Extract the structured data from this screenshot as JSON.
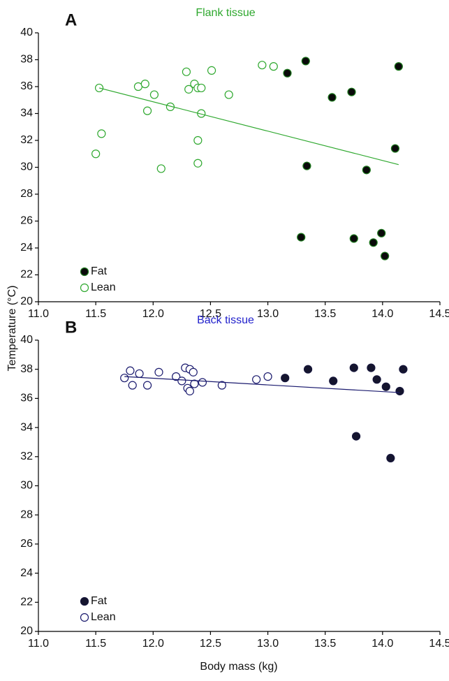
{
  "chart_data": [
    {
      "type": "scatter",
      "panel": "A",
      "title": "Flank tissue",
      "title_color": "#2ea82e",
      "ylabel": "Temperature (°C)",
      "xlim": [
        11,
        14.5
      ],
      "ylim": [
        20,
        40
      ],
      "xticks": [
        {
          "value": 11,
          "label": "11.0"
        },
        11.5,
        {
          "value": 12,
          "label": "12.0"
        },
        12.5,
        {
          "value": 13,
          "label": "13.0"
        },
        13.5,
        {
          "value": 14,
          "label": "14.0"
        },
        14.5
      ],
      "yticks": [
        20,
        22,
        24,
        26,
        28,
        30,
        32,
        34,
        36,
        38,
        40
      ],
      "legend": "lower left",
      "series": [
        {
          "name": "Fat",
          "color": "#1e7a1e",
          "fill": "#0a0a0a",
          "x": [
            13.17,
            13.33,
            13.34,
            13.29,
            13.56,
            13.73,
            13.75,
            13.86,
            13.92,
            13.99,
            14.02,
            14.11,
            14.14
          ],
          "values": [
            37.0,
            37.9,
            30.1,
            24.8,
            35.2,
            35.6,
            24.7,
            29.8,
            24.4,
            25.1,
            23.4,
            31.4,
            37.5
          ]
        },
        {
          "name": "Lean",
          "color": "#2ea82e",
          "fill": "#ffffff",
          "x": [
            11.53,
            11.5,
            11.55,
            11.87,
            11.93,
            12.01,
            11.95,
            12.07,
            12.15,
            12.29,
            12.31,
            12.36,
            12.39,
            12.42,
            12.39,
            12.39,
            12.42,
            12.51,
            12.66,
            12.95,
            13.05
          ],
          "values": [
            35.9,
            31.0,
            32.5,
            36.0,
            36.2,
            35.4,
            34.2,
            29.9,
            34.5,
            37.1,
            35.8,
            36.2,
            35.9,
            35.9,
            30.3,
            32.0,
            34.0,
            37.2,
            35.4,
            37.6,
            37.5
          ]
        }
      ],
      "trendline": {
        "x": [
          11.53,
          14.14
        ],
        "y": [
          35.9,
          30.2
        ],
        "color": "#2ea82e"
      }
    },
    {
      "type": "scatter",
      "panel": "B",
      "title": "Back tissue",
      "title_color": "#2222cc",
      "xlabel": "Body mass (kg)",
      "xlim": [
        11,
        14.5
      ],
      "ylim": [
        20,
        40
      ],
      "xticks": [
        {
          "value": 11,
          "label": "11.0"
        },
        11.5,
        {
          "value": 12,
          "label": "12.0"
        },
        12.5,
        {
          "value": 13,
          "label": "13.0"
        },
        13.5,
        {
          "value": 14,
          "label": "14.0"
        },
        14.5
      ],
      "yticks": [
        20,
        22,
        24,
        26,
        28,
        30,
        32,
        34,
        36,
        38,
        40
      ],
      "legend": "lower left",
      "series": [
        {
          "name": "Fat",
          "color": "#15153a",
          "fill": "#15152e",
          "x": [
            13.15,
            13.35,
            13.57,
            13.75,
            13.77,
            13.9,
            13.95,
            14.03,
            14.07,
            14.15,
            14.18
          ],
          "values": [
            37.4,
            38.0,
            37.2,
            38.1,
            33.4,
            38.1,
            37.3,
            36.8,
            31.9,
            36.5,
            38.0
          ]
        },
        {
          "name": "Lean",
          "color": "#1a1a6e",
          "fill": "#ffffff",
          "x": [
            11.75,
            11.8,
            11.82,
            11.88,
            11.95,
            12.05,
            12.2,
            12.25,
            12.28,
            12.32,
            12.35,
            12.3,
            12.32,
            12.36,
            12.43,
            12.6,
            12.9,
            13.0
          ],
          "values": [
            37.4,
            37.9,
            36.9,
            37.7,
            36.9,
            37.8,
            37.5,
            37.2,
            38.1,
            38.0,
            37.8,
            36.7,
            36.5,
            37.0,
            37.1,
            36.9,
            37.3,
            37.5
          ]
        }
      ],
      "trendline": {
        "x": [
          11.75,
          14.15
        ],
        "y": [
          37.5,
          36.4
        ],
        "color": "#1a1a6e"
      }
    }
  ]
}
